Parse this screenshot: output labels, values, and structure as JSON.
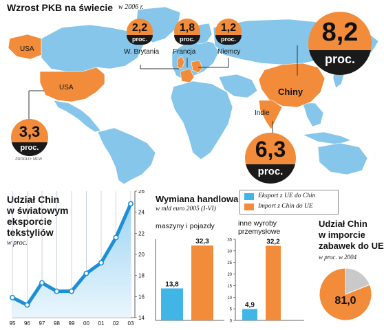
{
  "map": {
    "title": "Wzrost PKB na świecie",
    "subtitle": "w 2006 r.",
    "source": "ŹRÓDŁO: MFW",
    "unit": "proc.",
    "countries": [
      {
        "name": "USA",
        "growth": "3,3"
      },
      {
        "name": "W. Brytania",
        "growth": "2,2"
      },
      {
        "name": "Francja",
        "growth": "1,8"
      },
      {
        "name": "Niemcy",
        "growth": "1,2"
      },
      {
        "name": "Chiny",
        "growth": "8,2"
      },
      {
        "name": "Indie",
        "growth": "6,3"
      }
    ],
    "usa_alaska_label": "USA"
  },
  "textiles": {
    "title_l1": "Udział Chin",
    "title_l2": "w światowym",
    "title_l3": "eksporcie",
    "title_l4": "tekstyliów",
    "unit": "w proc."
  },
  "trade": {
    "title": "Wymiana handlowa",
    "subtitle": "w mld euro  2005 (I-VI)",
    "legend_export": "Eksport z UE do Chin",
    "legend_import": "Import z Chin do UE",
    "panel1_title": "maszyny i pojazdy",
    "panel2_title_l1": "inne wyroby",
    "panel2_title_l2": "przemysłowe"
  },
  "toys": {
    "title_l1": "Udział Chin",
    "title_l2": "w imporcie",
    "title_l3": "zabawek do UE",
    "subtitle": "w proc.  w 2004",
    "value_label": "81,0"
  },
  "colors": {
    "orange": "#f28c3a",
    "blue": "#41b6e6",
    "dark": "#1a1a1a",
    "map_blue": "#86c6ea",
    "line": "#1d8fd6",
    "grey": "#c9c9c9"
  },
  "chart_data": [
    {
      "type": "line",
      "title": "Udział Chin w światowym eksporcie tekstyliów",
      "ylabel": "w proc.",
      "x": [
        "95",
        "96",
        "97",
        "98",
        "99",
        "00",
        "01",
        "02",
        "03"
      ],
      "y_ticks": [
        "14",
        "16",
        "18",
        "20",
        "22",
        "24",
        "26"
      ],
      "ylim": [
        14,
        26
      ],
      "values": [
        15.9,
        15.2,
        17.3,
        16.5,
        16.5,
        18.2,
        19.2,
        21.6,
        24.8
      ],
      "grid": true
    },
    {
      "type": "bar",
      "title": "maszyny i pojazdy",
      "categories": [
        "Eksport z UE do Chin",
        "Import z Chin do UE"
      ],
      "values": [
        13.8,
        32.3
      ],
      "value_labels": [
        "13,8",
        "32,3"
      ],
      "ylim": [
        0,
        35
      ]
    },
    {
      "type": "bar",
      "title": "inne wyroby przemysłowe",
      "categories": [
        "Eksport z UE do Chin",
        "Import z Chin do UE"
      ],
      "values": [
        4.9,
        32.2
      ],
      "value_labels": [
        "4,9",
        "32,2"
      ],
      "y_ticks": [
        "0",
        "5",
        "10",
        "15",
        "20",
        "25",
        "30",
        "35"
      ],
      "ylim": [
        0,
        35
      ]
    },
    {
      "type": "pie",
      "title": "Udział Chin w imporcie zabawek do UE",
      "values": [
        81.0,
        19.0
      ],
      "value_labels": [
        "81,0"
      ]
    }
  ]
}
